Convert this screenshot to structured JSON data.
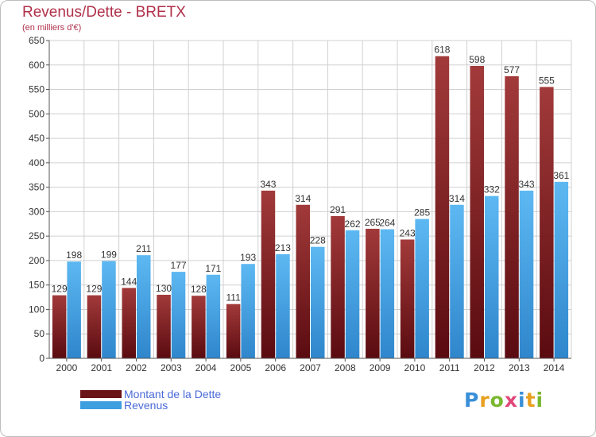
{
  "title": "Revenus/Dette - BRETX",
  "subtitle": "(en milliers d'€)",
  "logo_text": "Proxiti",
  "colors": {
    "debt": "#7a1c1f",
    "revenue": "#3d9ee0",
    "title": "#b0304a",
    "legend_text": "#4a6ad8",
    "grid": "#cccccc"
  },
  "chart_data": {
    "type": "bar",
    "title": "Revenus/Dette - BRETX",
    "subtitle": "(en milliers d'€)",
    "categories": [
      "2000",
      "2001",
      "2002",
      "2003",
      "2004",
      "2005",
      "2006",
      "2007",
      "2008",
      "2009",
      "2010",
      "2011",
      "2012",
      "2013",
      "2014"
    ],
    "series": [
      {
        "name": "Montant de la Dette",
        "values": [
          129,
          129,
          144,
          130,
          128,
          111,
          343,
          314,
          291,
          265,
          243,
          618,
          598,
          577,
          555
        ]
      },
      {
        "name": "Revenus",
        "values": [
          198,
          199,
          211,
          177,
          171,
          193,
          213,
          228,
          262,
          264,
          285,
          314,
          332,
          343,
          361
        ]
      }
    ],
    "ylim": [
      0,
      650
    ],
    "yticks": [
      0,
      50,
      100,
      150,
      200,
      250,
      300,
      350,
      400,
      450,
      500,
      550,
      600,
      650
    ],
    "grid": true,
    "legend_position": "bottom-left"
  }
}
